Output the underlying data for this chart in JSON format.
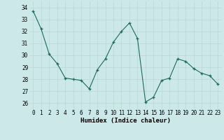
{
  "x": [
    0,
    1,
    2,
    3,
    4,
    5,
    6,
    7,
    8,
    9,
    10,
    11,
    12,
    13,
    14,
    15,
    16,
    17,
    18,
    19,
    20,
    21,
    22,
    23
  ],
  "y": [
    33.7,
    32.2,
    30.1,
    29.3,
    28.1,
    28.0,
    27.9,
    27.2,
    28.8,
    29.7,
    31.1,
    32.0,
    32.7,
    31.4,
    26.1,
    26.5,
    27.9,
    28.1,
    29.7,
    29.5,
    28.9,
    28.5,
    28.3,
    27.6
  ],
  "xlabel": "Humidex (Indice chaleur)",
  "ylim": [
    25.5,
    34.5
  ],
  "yticks": [
    26,
    27,
    28,
    29,
    30,
    31,
    32,
    33,
    34
  ],
  "xticks": [
    0,
    1,
    2,
    3,
    4,
    5,
    6,
    7,
    8,
    9,
    10,
    11,
    12,
    13,
    14,
    15,
    16,
    17,
    18,
    19,
    20,
    21,
    22,
    23
  ],
  "line_color": "#1a6b5e",
  "marker": "+",
  "bg_color": "#cce8e8",
  "grid_color": "#b8d8d8",
  "tick_label_size": 5.5,
  "xlabel_size": 6.5,
  "xlabel_bold": true
}
